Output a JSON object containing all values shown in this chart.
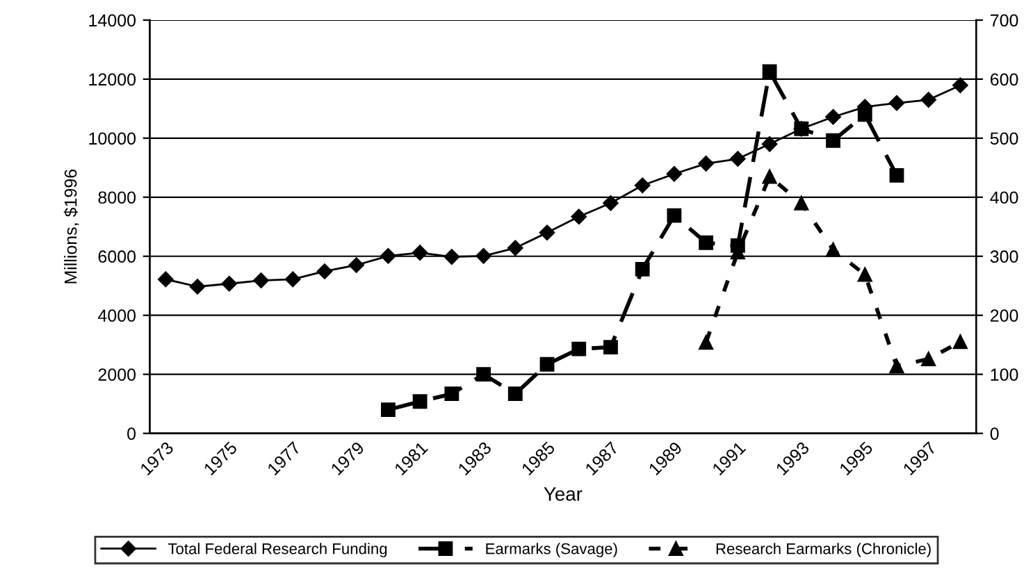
{
  "chart_data": {
    "type": "line",
    "xlabel": "Year",
    "ylabel": "Millions, $1996",
    "categories": [
      "1973",
      null,
      "1975",
      null,
      "1977",
      null,
      "1979",
      null,
      "1981",
      null,
      "1983",
      null,
      "1985",
      null,
      "1987",
      null,
      "1989",
      null,
      "1991",
      null,
      "1993",
      null,
      "1995",
      null,
      "1997",
      null
    ],
    "series": [
      {
        "name": "Total Federal Research Funding",
        "color": "#000000",
        "marker": "diamond",
        "line_style": "solid",
        "values": [
          5220,
          4970,
          5070,
          5180,
          5220,
          5490,
          5700,
          6010,
          6120,
          5980,
          6010,
          6280,
          6800,
          7340,
          7800,
          8400,
          8790,
          9140,
          9300,
          9800,
          10320,
          10720,
          11060,
          11190,
          11300,
          11790
        ]
      },
      {
        "name": "Earmarks (Savage)",
        "color": "#000000",
        "marker": "square",
        "line_style": "dashed",
        "axis": "y2",
        "values": [
          null,
          null,
          null,
          null,
          null,
          null,
          null,
          40,
          54,
          67,
          100,
          67,
          117,
          143,
          146,
          278,
          369,
          323,
          318,
          613,
          516,
          496,
          540,
          437,
          null,
          null
        ]
      },
      {
        "name": "Research Earmarks (Chronicle)",
        "color": "#000000",
        "marker": "triangle",
        "line_style": "dotted",
        "axis": "y2",
        "values": [
          null,
          null,
          null,
          null,
          null,
          null,
          null,
          null,
          null,
          null,
          null,
          null,
          null,
          null,
          null,
          null,
          null,
          154,
          307,
          435,
          390,
          311,
          269,
          114,
          126,
          155
        ]
      }
    ],
    "ylim": [
      0,
      14000
    ],
    "yticks": [
      0,
      2000,
      4000,
      6000,
      8000,
      10000,
      12000,
      14000
    ],
    "y2lim": [
      0,
      700
    ],
    "y2ticks": [
      0,
      100,
      200,
      300,
      400,
      500,
      600,
      700
    ],
    "grid": "y",
    "legend": "bottom"
  }
}
